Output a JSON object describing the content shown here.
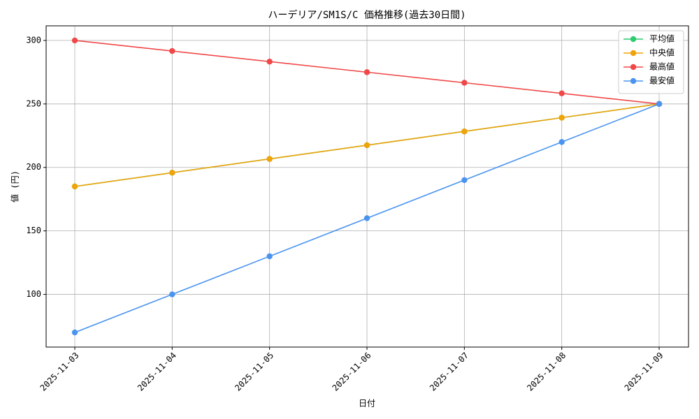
{
  "chart_data": {
    "type": "line",
    "title": "ハーデリア/SM1S/C 価格推移(過去30日間)",
    "x_label": "日付",
    "y_label": "値 (円)",
    "categories": [
      "2025-11-03",
      "2025-11-04",
      "2025-11-05",
      "2025-11-06",
      "2025-11-07",
      "2025-11-08",
      "2025-11-09"
    ],
    "series": [
      {
        "name": "平均値",
        "color": "#2ecc71",
        "values": [
          185,
          195.83,
          206.67,
          217.5,
          228.33,
          239.17,
          250
        ]
      },
      {
        "name": "中央値",
        "color": "#f0a30a",
        "values": [
          185,
          195.83,
          206.67,
          217.5,
          228.33,
          239.17,
          250
        ]
      },
      {
        "name": "最高値",
        "color": "#f04848",
        "values": [
          300,
          291.67,
          283.33,
          275,
          266.67,
          258.33,
          250
        ]
      },
      {
        "name": "最安値",
        "color": "#4a94f0",
        "values": [
          70,
          100,
          130,
          160,
          190,
          220,
          250
        ]
      }
    ],
    "ylim": [
      58.5,
      311.5
    ],
    "yticks": [
      100,
      150,
      200,
      250,
      300
    ],
    "grid": true,
    "legend": "upper right"
  }
}
